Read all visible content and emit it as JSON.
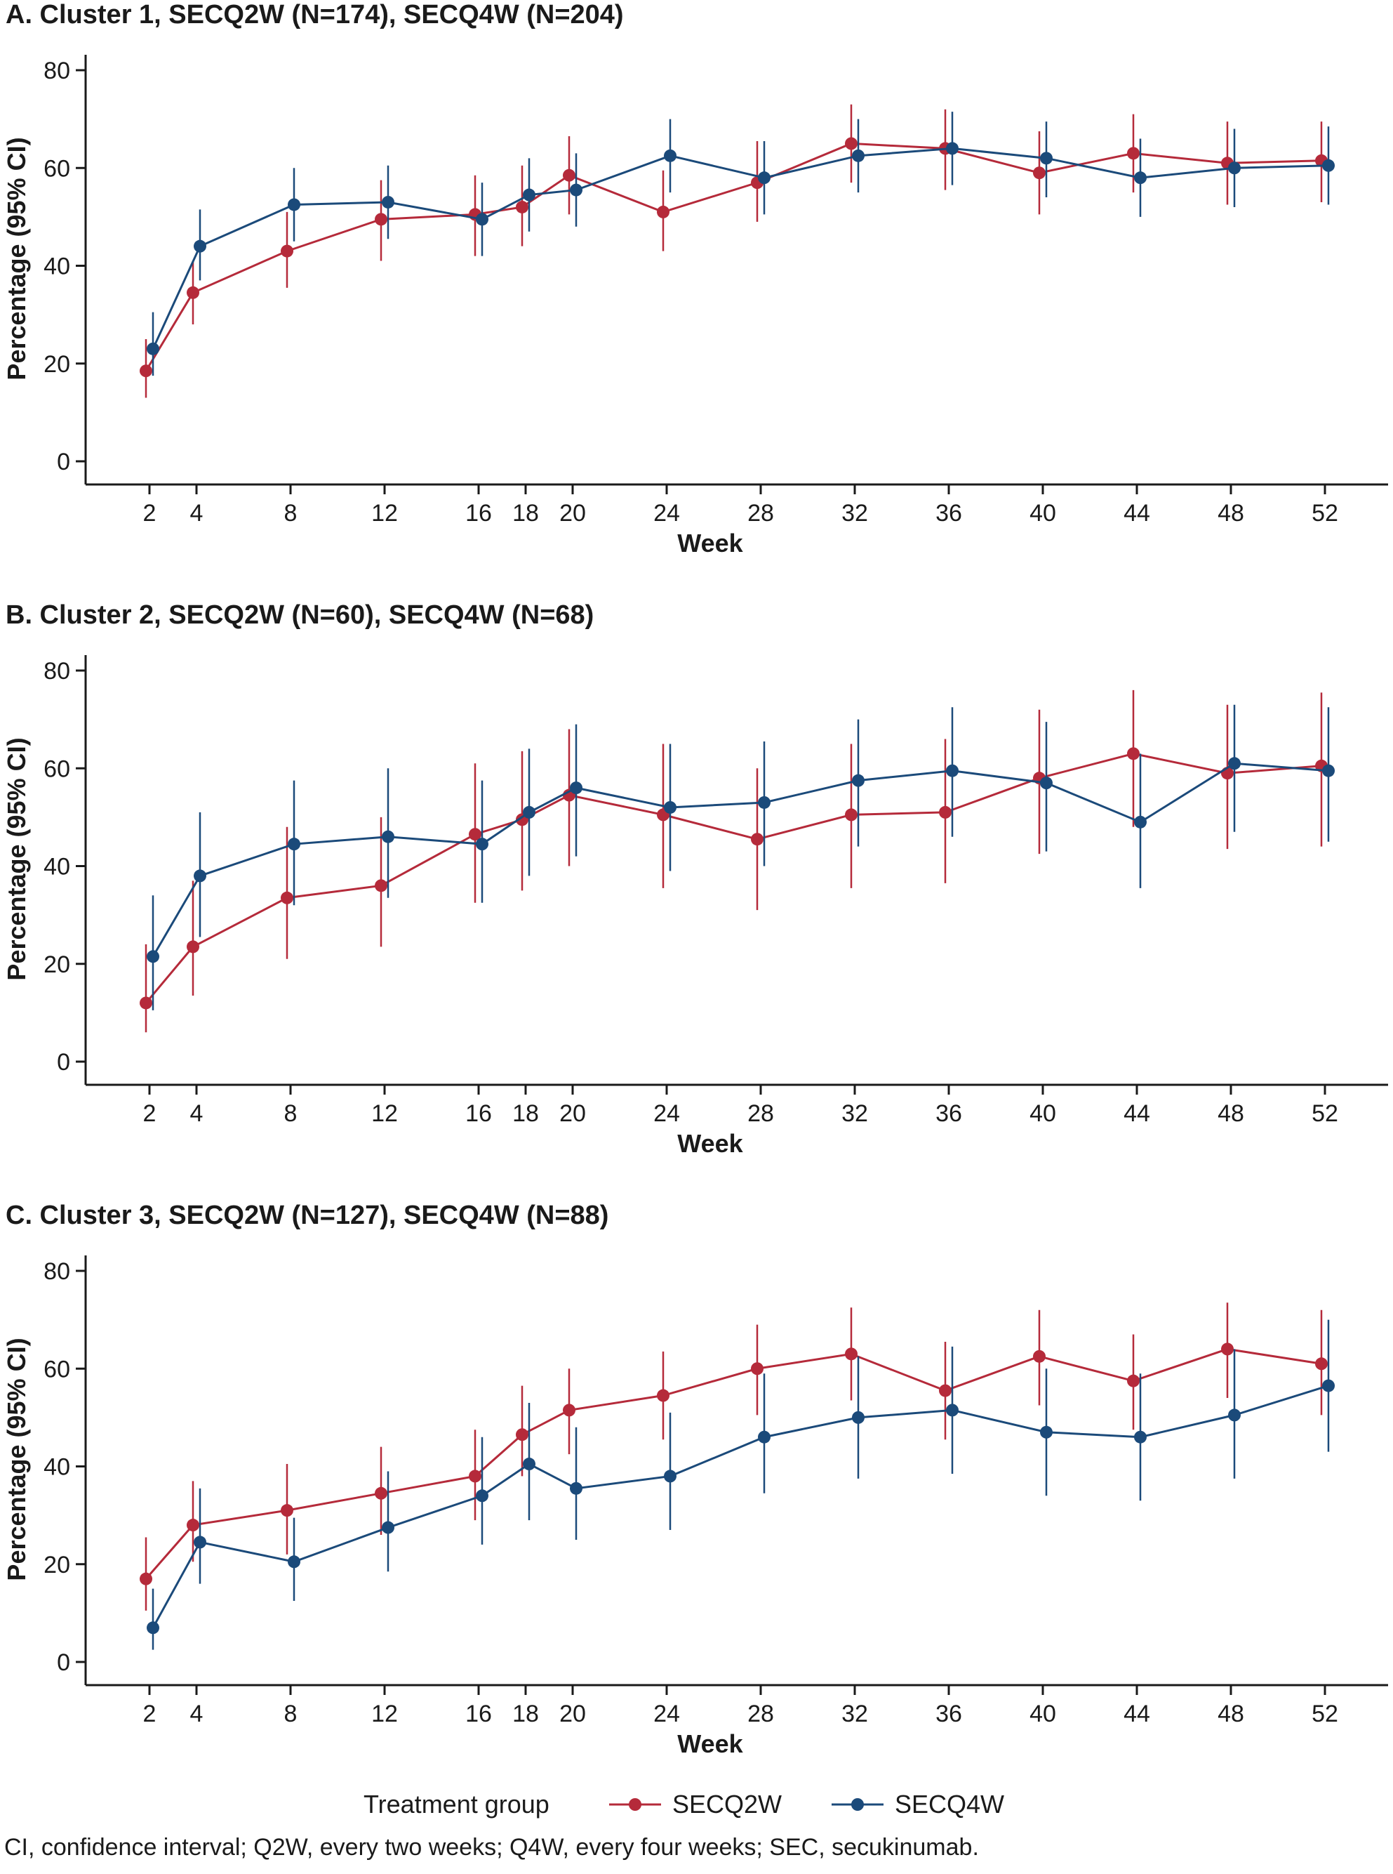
{
  "colors": {
    "SECQ2W": "#b52a3a",
    "SECQ4W": "#1b4a7a",
    "axis": "#1a1a1a"
  },
  "legend": {
    "title": "Treatment group",
    "items": [
      "SECQ2W",
      "SECQ4W"
    ]
  },
  "footnote": "CI, confidence interval; Q2W, every two weeks; Q4W, every four weeks; SEC, secukinumab.",
  "chart_data": [
    {
      "type": "line",
      "title": "A. Cluster 1, SECQ2W (N=174), SECQ4W (N=204)",
      "xlabel": "Week",
      "ylabel": "Percentage (95% CI)",
      "ylim": [
        0,
        80
      ],
      "yticks": [
        0,
        20,
        40,
        60,
        80
      ],
      "x": [
        2,
        4,
        8,
        12,
        16,
        18,
        20,
        24,
        28,
        32,
        36,
        40,
        44,
        48,
        52
      ],
      "x_tick_labels": [
        "2",
        "4",
        "8",
        "12",
        "16",
        "18",
        "20",
        "24",
        "28",
        "32",
        "36",
        "40",
        "44",
        "48",
        "52"
      ],
      "grid": false,
      "legend": "bottom-center",
      "series": [
        {
          "name": "SECQ2W",
          "values": [
            18.5,
            34.5,
            43,
            49.5,
            50.5,
            52,
            58.5,
            51,
            57,
            65,
            64,
            59,
            63,
            61,
            61.5
          ],
          "ci_low": [
            13,
            28,
            35.5,
            41,
            42,
            44,
            50.5,
            43,
            49,
            57,
            55.5,
            50.5,
            55,
            52.5,
            53
          ],
          "ci_high": [
            25,
            41,
            51,
            57.5,
            58.5,
            60.5,
            66.5,
            59.5,
            65.5,
            73,
            72,
            67.5,
            71,
            69.5,
            69.5
          ]
        },
        {
          "name": "SECQ4W",
          "values": [
            23,
            44,
            52.5,
            53,
            49.5,
            54.5,
            55.5,
            62.5,
            58,
            62.5,
            64,
            62,
            58,
            60,
            60.5
          ],
          "ci_low": [
            17.5,
            37,
            45,
            45.5,
            42,
            47,
            48,
            55,
            50.5,
            55,
            56.5,
            54,
            50,
            52,
            52.5
          ],
          "ci_high": [
            30.5,
            51.5,
            60,
            60.5,
            57,
            62,
            63,
            70,
            65.5,
            70,
            71.5,
            69.5,
            66,
            68,
            68.5
          ]
        }
      ]
    },
    {
      "type": "line",
      "title": "B. Cluster 2, SECQ2W (N=60), SECQ4W (N=68)",
      "xlabel": "Week",
      "ylabel": "Percentage (95% CI)",
      "ylim": [
        0,
        80
      ],
      "yticks": [
        0,
        20,
        40,
        60,
        80
      ],
      "x": [
        2,
        4,
        8,
        12,
        16,
        18,
        20,
        24,
        28,
        32,
        36,
        40,
        44,
        48,
        52
      ],
      "x_tick_labels": [
        "2",
        "4",
        "8",
        "12",
        "16",
        "18",
        "20",
        "24",
        "28",
        "32",
        "36",
        "40",
        "44",
        "48",
        "52"
      ],
      "grid": false,
      "legend": "bottom-center",
      "series": [
        {
          "name": "SECQ2W",
          "values": [
            12,
            23.5,
            33.5,
            36,
            46.5,
            49.5,
            54.5,
            50.5,
            45.5,
            50.5,
            51,
            58,
            63,
            59,
            60.5
          ],
          "ci_low": [
            6,
            13.5,
            21,
            23.5,
            32.5,
            35,
            40,
            35.5,
            31,
            35.5,
            36.5,
            42.5,
            48,
            43.5,
            44
          ],
          "ci_high": [
            24,
            37,
            48,
            50,
            61,
            63.5,
            68,
            65,
            60,
            65,
            66,
            72,
            76,
            73,
            75.5
          ]
        },
        {
          "name": "SECQ4W",
          "values": [
            21.5,
            38,
            44.5,
            46,
            44.5,
            51,
            56,
            52,
            53,
            57.5,
            59.5,
            57,
            49,
            61,
            59.5
          ],
          "ci_low": [
            10.5,
            25.5,
            32,
            33.5,
            32.5,
            38,
            42,
            39,
            40,
            44,
            46,
            43,
            35.5,
            47,
            45
          ],
          "ci_high": [
            34,
            51,
            57.5,
            60,
            57.5,
            64,
            69,
            65,
            65.5,
            70,
            72.5,
            69.5,
            63,
            73,
            72.5
          ]
        }
      ]
    },
    {
      "type": "line",
      "title": "C. Cluster 3, SECQ2W (N=127), SECQ4W (N=88)",
      "xlabel": "Week",
      "ylabel": "Percentage (95% CI)",
      "ylim": [
        0,
        80
      ],
      "yticks": [
        0,
        20,
        40,
        60,
        80
      ],
      "x": [
        2,
        4,
        8,
        12,
        16,
        18,
        20,
        24,
        28,
        32,
        36,
        40,
        44,
        48,
        52
      ],
      "x_tick_labels": [
        "2",
        "4",
        "8",
        "12",
        "16",
        "18",
        "20",
        "24",
        "28",
        "32",
        "36",
        "40",
        "44",
        "48",
        "52"
      ],
      "grid": false,
      "legend": "bottom-center",
      "series": [
        {
          "name": "SECQ2W",
          "values": [
            17,
            28,
            31,
            34.5,
            38,
            46.5,
            51.5,
            54.5,
            60,
            63,
            55.5,
            62.5,
            57.5,
            64,
            61
          ],
          "ci_low": [
            10.5,
            20.5,
            22,
            26,
            29,
            38,
            42.5,
            45.5,
            50.5,
            53.5,
            45.5,
            52.5,
            47.5,
            54,
            50.5
          ],
          "ci_high": [
            25.5,
            37,
            40.5,
            44,
            47.5,
            56.5,
            60,
            63.5,
            69,
            72.5,
            65.5,
            72,
            67,
            73.5,
            72
          ]
        },
        {
          "name": "SECQ4W",
          "values": [
            7,
            24.5,
            20.5,
            27.5,
            34,
            40.5,
            35.5,
            38,
            46,
            50,
            51.5,
            47,
            46,
            50.5,
            56.5
          ],
          "ci_low": [
            2.5,
            16,
            12.5,
            18.5,
            24,
            29,
            25,
            27,
            34.5,
            37.5,
            38.5,
            34,
            33,
            37.5,
            43
          ],
          "ci_high": [
            15,
            35.5,
            29.5,
            39,
            46,
            53,
            48,
            51,
            59,
            62.5,
            64.5,
            60,
            59,
            64,
            70
          ]
        }
      ]
    }
  ]
}
